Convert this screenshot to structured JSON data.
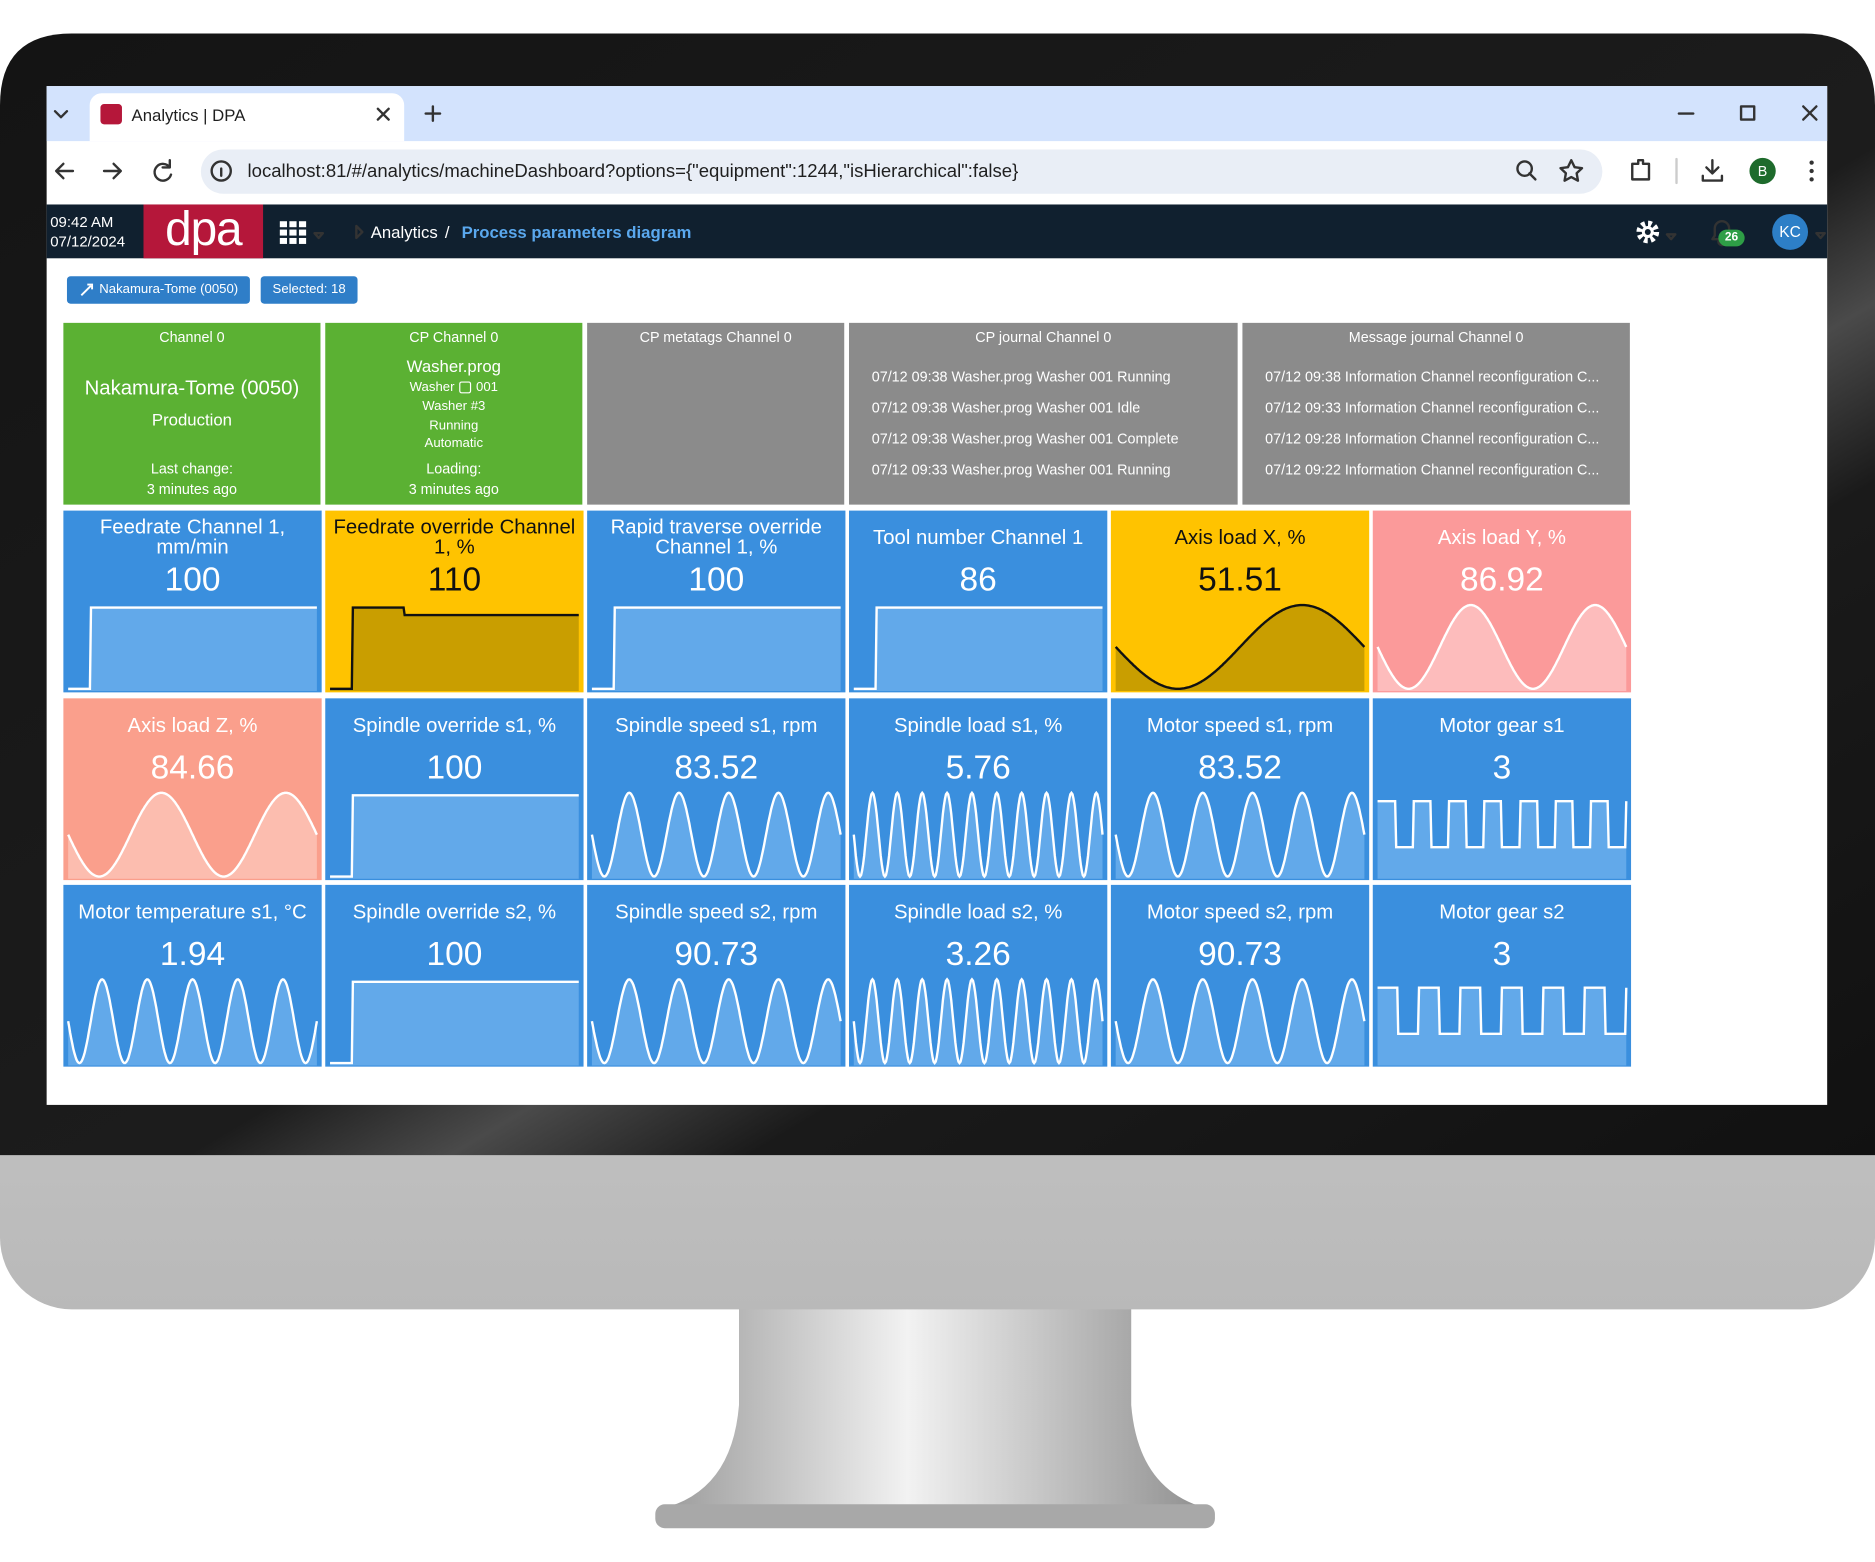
{
  "browser": {
    "tab_title": "Analytics | DPA",
    "url": "localhost:81/#/analytics/machineDashboard?options={\"equipment\":1244,\"isHierarchical\":false}",
    "profile": "B"
  },
  "header": {
    "time": "09:42 AM",
    "date": "07/12/2024",
    "logo": "dpa",
    "breadcrumb": [
      "Analytics",
      "Process parameters diagram"
    ],
    "separator": "/",
    "notifications": "26",
    "user": "KC"
  },
  "toolbar": {
    "machine": "Nakamura-Tome (0050)",
    "selected": "Selected: 18"
  },
  "status_tiles": [
    {
      "title": "Channel 0",
      "name": "Nakamura-Tome (0050)",
      "state": "Production",
      "change_label": "Last change:",
      "change": "3 minutes ago",
      "color": "#5bb133"
    },
    {
      "title": "CP Channel 0",
      "program": "Washer.prog",
      "machine": "Washer",
      "number": "001",
      "details": [
        "Washer #3",
        "Running",
        "Automatic"
      ],
      "change_label": "Loading:",
      "change": "3 minutes ago",
      "color": "#5bb133"
    },
    {
      "title": "CP metatags Channel 0",
      "color": "#8b8b8b"
    },
    {
      "title": "CP journal Channel 0",
      "color": "#8b8b8b",
      "entries": [
        "07/12 09:38 Washer.prog Washer 001 Running",
        "07/12 09:38 Washer.prog Washer 001 Idle",
        "07/12 09:38 Washer.prog Washer 001 Complete",
        "07/12 09:33 Washer.prog Washer 001 Running"
      ]
    },
    {
      "title": "Message journal Channel 0",
      "color": "#8b8b8b",
      "entries": [
        "07/12 09:38 Information Channel reconfiguration C...",
        "07/12 09:33 Information Channel reconfiguration C...",
        "07/12 09:28 Information Channel reconfiguration C...",
        "07/12 09:22 Information Channel reconfiguration C..."
      ]
    }
  ],
  "tiles": [
    {
      "title": "Feedrate Channel 1, mm/min",
      "value": 100,
      "trend": "step",
      "waves": 1,
      "color": "#3a8fde",
      "chart_color": "#62a9ea",
      "line_color": "#ffffff"
    },
    {
      "title": "Feedrate override Channel 1, %",
      "value": 110,
      "trend": "step-down",
      "waves": 1,
      "color": "#ffc300",
      "chart_color": "#c99e00",
      "line_color": "#111111"
    },
    {
      "title": "Rapid traverse override Channel 1, %",
      "value": 100,
      "trend": "step",
      "waves": 1,
      "color": "#3a8fde",
      "chart_color": "#62a9ea",
      "line_color": "#ffffff"
    },
    {
      "title": "Tool number Channel 1",
      "value": 86,
      "trend": "step",
      "waves": 1,
      "color": "#3a8fde",
      "chart_color": "#62a9ea",
      "line_color": "#ffffff"
    },
    {
      "title": "Axis load X, %",
      "value": 51.51,
      "trend": "sine",
      "waves": 1,
      "color": "#ffc300",
      "chart_color": "#c99e00",
      "line_color": "#111111"
    },
    {
      "title": "Axis load Y, %",
      "value": 86.92,
      "trend": "sine",
      "waves": 2,
      "color": "#fb9a9a",
      "chart_color": "#fdbcbc",
      "line_color": "#ffffff"
    },
    {
      "title": "Axis load Z, %",
      "value": 84.66,
      "trend": "sine",
      "waves": 2,
      "color": "#fa9f8c",
      "chart_color": "#fcbdaf",
      "line_color": "#ffffff"
    },
    {
      "title": "Spindle override s1, %",
      "value": 100,
      "trend": "step",
      "waves": 1,
      "color": "#3a8fde",
      "chart_color": "#62a9ea",
      "line_color": "#ffffff"
    },
    {
      "title": "Spindle speed s1, rpm",
      "value": 83.52,
      "trend": "sine",
      "waves": 5,
      "color": "#3a8fde",
      "chart_color": "#62a9ea",
      "line_color": "#ffffff"
    },
    {
      "title": "Spindle load s1, %",
      "value": 5.76,
      "trend": "sine",
      "waves": 10,
      "color": "#3a8fde",
      "chart_color": "#62a9ea",
      "line_color": "#ffffff"
    },
    {
      "title": "Motor speed s1, rpm",
      "value": 83.52,
      "trend": "sine",
      "waves": 5,
      "color": "#3a8fde",
      "chart_color": "#62a9ea",
      "line_color": "#ffffff"
    },
    {
      "title": "Motor gear s1",
      "value": 3,
      "trend": "square",
      "waves": 7,
      "color": "#3a8fde",
      "chart_color": "#62a9ea",
      "line_color": "#ffffff"
    },
    {
      "title": "Motor temperature s1, °C",
      "value": 1.94,
      "trend": "sine",
      "waves": 5.5,
      "color": "#3a8fde",
      "chart_color": "#62a9ea",
      "line_color": "#ffffff"
    },
    {
      "title": "Spindle override s2, %",
      "value": 100,
      "trend": "step",
      "waves": 1,
      "color": "#3a8fde",
      "chart_color": "#62a9ea",
      "line_color": "#ffffff"
    },
    {
      "title": "Spindle speed s2, rpm",
      "value": 90.73,
      "trend": "sine",
      "waves": 5,
      "color": "#3a8fde",
      "chart_color": "#62a9ea",
      "line_color": "#ffffff"
    },
    {
      "title": "Spindle load s2, %",
      "value": 3.26,
      "trend": "sine",
      "waves": 10,
      "color": "#3a8fde",
      "chart_color": "#62a9ea",
      "line_color": "#ffffff"
    },
    {
      "title": "Motor speed s2, rpm",
      "value": 90.73,
      "trend": "sine",
      "waves": 5,
      "color": "#3a8fde",
      "chart_color": "#62a9ea",
      "line_color": "#ffffff"
    },
    {
      "title": "Motor gear s2",
      "value": 3,
      "trend": "square",
      "waves": 6,
      "color": "#3a8fde",
      "chart_color": "#62a9ea",
      "line_color": "#ffffff"
    }
  ]
}
